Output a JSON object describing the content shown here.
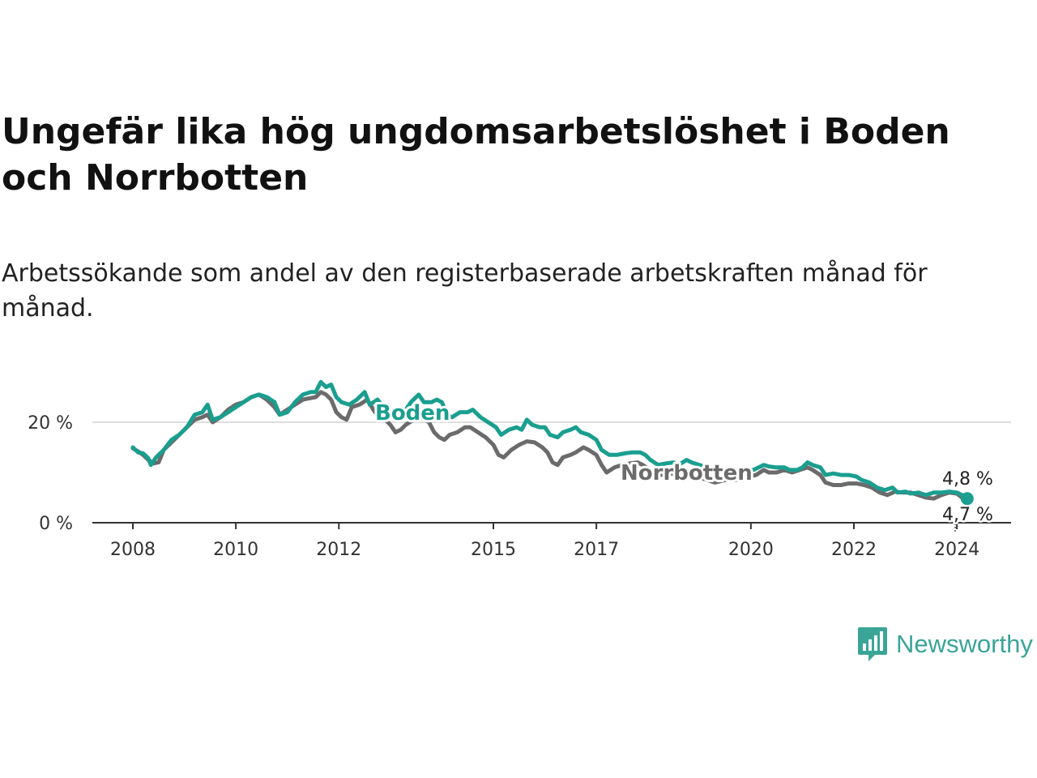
{
  "title": "Ungefär lika hög ungdomsarbetslöshet i Boden och Norrbotten",
  "subtitle": "Arbetssökande som andel av den registerbaserade arbetskraften månad för månad.",
  "logo": {
    "text": "Newsworthy",
    "icon": "newsworthy-chart-icon"
  },
  "colors": {
    "boden": "#1a9e8f",
    "norrbotten": "#6b6b6b",
    "grid": "#dddddd",
    "axis": "#333333"
  },
  "chart_data": {
    "type": "line",
    "title": "Ungefär lika hög ungdomsarbetslöshet i Boden och Norrbotten",
    "xlabel": "",
    "ylabel": "",
    "xlim": [
      2008.0,
      2024.25
    ],
    "ylim": [
      0,
      30
    ],
    "x_ticks": [
      {
        "value": 2008,
        "label": "2008"
      },
      {
        "value": 2010,
        "label": "2010"
      },
      {
        "value": 2012,
        "label": "2012"
      },
      {
        "value": 2015,
        "label": "2015"
      },
      {
        "value": 2017,
        "label": "2017"
      },
      {
        "value": 2020,
        "label": "2020"
      },
      {
        "value": 2022,
        "label": "2022"
      },
      {
        "value": 2024,
        "label": "2024"
      }
    ],
    "y_ticks": [
      {
        "value": 0,
        "label": "0 %"
      },
      {
        "value": 20,
        "label": "20 %"
      }
    ],
    "grid": true,
    "series": [
      {
        "name": "Boden",
        "label": "Boden",
        "end_label": "4,8 %",
        "points": [
          [
            2008.0,
            15.0
          ],
          [
            2008.1,
            14.0
          ],
          [
            2008.2,
            13.8
          ],
          [
            2008.3,
            12.8
          ],
          [
            2008.35,
            11.5
          ],
          [
            2008.45,
            13.0
          ],
          [
            2008.6,
            14.5
          ],
          [
            2008.75,
            16.5
          ],
          [
            2008.9,
            17.5
          ],
          [
            2009.05,
            19.0
          ],
          [
            2009.2,
            21.5
          ],
          [
            2009.35,
            22.0
          ],
          [
            2009.45,
            23.5
          ],
          [
            2009.55,
            20.5
          ],
          [
            2009.7,
            21.0
          ],
          [
            2009.85,
            22.0
          ],
          [
            2010.0,
            23.0
          ],
          [
            2010.15,
            24.0
          ],
          [
            2010.3,
            25.0
          ],
          [
            2010.45,
            25.5
          ],
          [
            2010.6,
            25.0
          ],
          [
            2010.75,
            24.0
          ],
          [
            2010.85,
            21.5
          ],
          [
            2011.0,
            22.0
          ],
          [
            2011.15,
            24.0
          ],
          [
            2011.3,
            25.5
          ],
          [
            2011.45,
            26.0
          ],
          [
            2011.55,
            26.0
          ],
          [
            2011.65,
            28.0
          ],
          [
            2011.75,
            27.0
          ],
          [
            2011.85,
            27.5
          ],
          [
            2011.95,
            25.0
          ],
          [
            2012.05,
            24.0
          ],
          [
            2012.2,
            23.5
          ],
          [
            2012.35,
            24.5
          ],
          [
            2012.5,
            26.0
          ],
          [
            2012.6,
            23.5
          ],
          [
            2012.75,
            24.5
          ],
          [
            2012.9,
            22.5
          ],
          [
            2013.05,
            22.0
          ],
          [
            2013.15,
            22.0
          ],
          [
            2013.3,
            22.5
          ],
          [
            2013.4,
            24.0
          ],
          [
            2013.55,
            25.5
          ],
          [
            2013.65,
            24.0
          ],
          [
            2013.8,
            24.0
          ],
          [
            2013.9,
            24.5
          ],
          [
            2014.0,
            24.0
          ],
          [
            2014.1,
            21.5
          ],
          [
            2014.2,
            21.0
          ],
          [
            2014.35,
            22.0
          ],
          [
            2014.5,
            22.0
          ],
          [
            2014.6,
            22.5
          ],
          [
            2014.75,
            21.0
          ],
          [
            2014.9,
            20.0
          ],
          [
            2015.05,
            19.0
          ],
          [
            2015.15,
            17.5
          ],
          [
            2015.3,
            18.5
          ],
          [
            2015.45,
            19.0
          ],
          [
            2015.55,
            18.5
          ],
          [
            2015.65,
            20.5
          ],
          [
            2015.75,
            19.5
          ],
          [
            2015.9,
            19.0
          ],
          [
            2016.0,
            19.0
          ],
          [
            2016.1,
            17.5
          ],
          [
            2016.25,
            17.0
          ],
          [
            2016.35,
            18.0
          ],
          [
            2016.5,
            18.5
          ],
          [
            2016.6,
            19.0
          ],
          [
            2016.7,
            18.0
          ],
          [
            2016.85,
            17.5
          ],
          [
            2017.0,
            16.5
          ],
          [
            2017.1,
            14.5
          ],
          [
            2017.25,
            13.5
          ],
          [
            2017.4,
            13.5
          ],
          [
            2017.55,
            13.8
          ],
          [
            2017.7,
            14.0
          ],
          [
            2017.85,
            14.0
          ],
          [
            2017.95,
            13.5
          ],
          [
            2018.05,
            12.5
          ],
          [
            2018.2,
            11.5
          ],
          [
            2018.35,
            11.8
          ],
          [
            2018.5,
            12.0
          ],
          [
            2018.6,
            11.5
          ],
          [
            2018.75,
            12.5
          ],
          [
            2018.85,
            12.0
          ],
          [
            2019.0,
            11.5
          ],
          [
            2019.15,
            11.0
          ],
          [
            2019.3,
            10.5
          ],
          [
            2019.5,
            10.5
          ],
          [
            2019.7,
            10.5
          ],
          [
            2019.9,
            10.5
          ],
          [
            2020.05,
            10.5
          ],
          [
            2020.15,
            11.0
          ],
          [
            2020.25,
            11.5
          ],
          [
            2020.35,
            11.2
          ],
          [
            2020.5,
            11.0
          ],
          [
            2020.65,
            11.0
          ],
          [
            2020.75,
            10.5
          ],
          [
            2020.9,
            10.5
          ],
          [
            2021.0,
            11.0
          ],
          [
            2021.1,
            12.0
          ],
          [
            2021.2,
            11.5
          ],
          [
            2021.35,
            11.0
          ],
          [
            2021.45,
            9.5
          ],
          [
            2021.6,
            9.8
          ],
          [
            2021.75,
            9.5
          ],
          [
            2021.9,
            9.5
          ],
          [
            2022.05,
            9.2
          ],
          [
            2022.15,
            8.5
          ],
          [
            2022.3,
            8.0
          ],
          [
            2022.45,
            7.0
          ],
          [
            2022.6,
            6.5
          ],
          [
            2022.75,
            7.0
          ],
          [
            2022.85,
            6.0
          ],
          [
            2023.0,
            6.2
          ],
          [
            2023.1,
            5.8
          ],
          [
            2023.25,
            6.0
          ],
          [
            2023.4,
            5.5
          ],
          [
            2023.55,
            6.0
          ],
          [
            2023.7,
            6.0
          ],
          [
            2023.85,
            6.2
          ],
          [
            2024.0,
            6.0
          ],
          [
            2024.1,
            5.5
          ],
          [
            2024.2,
            4.8
          ]
        ]
      },
      {
        "name": "Norrbotten",
        "label": "Norrbotten",
        "end_label": "4,7 %",
        "points": [
          [
            2008.0,
            14.8
          ],
          [
            2008.1,
            14.2
          ],
          [
            2008.2,
            13.5
          ],
          [
            2008.3,
            12.5
          ],
          [
            2008.4,
            11.8
          ],
          [
            2008.5,
            12.0
          ],
          [
            2008.6,
            14.5
          ],
          [
            2008.75,
            16.0
          ],
          [
            2008.9,
            17.5
          ],
          [
            2009.05,
            19.0
          ],
          [
            2009.2,
            20.5
          ],
          [
            2009.35,
            21.0
          ],
          [
            2009.45,
            21.5
          ],
          [
            2009.55,
            20.0
          ],
          [
            2009.7,
            21.0
          ],
          [
            2009.85,
            22.5
          ],
          [
            2010.0,
            23.5
          ],
          [
            2010.15,
            24.0
          ],
          [
            2010.3,
            25.0
          ],
          [
            2010.45,
            25.5
          ],
          [
            2010.6,
            24.5
          ],
          [
            2010.75,
            23.0
          ],
          [
            2010.85,
            21.5
          ],
          [
            2011.0,
            22.5
          ],
          [
            2011.15,
            23.5
          ],
          [
            2011.3,
            24.5
          ],
          [
            2011.45,
            24.8
          ],
          [
            2011.55,
            25.0
          ],
          [
            2011.65,
            26.0
          ],
          [
            2011.75,
            25.5
          ],
          [
            2011.85,
            24.5
          ],
          [
            2011.95,
            22.0
          ],
          [
            2012.05,
            21.0
          ],
          [
            2012.15,
            20.5
          ],
          [
            2012.25,
            23.0
          ],
          [
            2012.4,
            23.5
          ],
          [
            2012.55,
            24.5
          ],
          [
            2012.7,
            22.0
          ],
          [
            2012.85,
            21.0
          ],
          [
            2013.0,
            19.5
          ],
          [
            2013.1,
            18.0
          ],
          [
            2013.2,
            18.5
          ],
          [
            2013.3,
            19.5
          ],
          [
            2013.45,
            20.5
          ],
          [
            2013.6,
            21.0
          ],
          [
            2013.75,
            20.0
          ],
          [
            2013.85,
            18.0
          ],
          [
            2013.95,
            17.0
          ],
          [
            2014.05,
            16.5
          ],
          [
            2014.15,
            17.5
          ],
          [
            2014.3,
            18.0
          ],
          [
            2014.45,
            19.0
          ],
          [
            2014.55,
            19.0
          ],
          [
            2014.7,
            18.0
          ],
          [
            2014.85,
            17.0
          ],
          [
            2015.0,
            15.5
          ],
          [
            2015.1,
            13.5
          ],
          [
            2015.2,
            13.0
          ],
          [
            2015.35,
            14.5
          ],
          [
            2015.5,
            15.5
          ],
          [
            2015.65,
            16.2
          ],
          [
            2015.8,
            16.0
          ],
          [
            2015.95,
            15.0
          ],
          [
            2016.05,
            14.0
          ],
          [
            2016.15,
            12.0
          ],
          [
            2016.25,
            11.5
          ],
          [
            2016.35,
            13.0
          ],
          [
            2016.5,
            13.5
          ],
          [
            2016.6,
            14.0
          ],
          [
            2016.75,
            15.0
          ],
          [
            2016.85,
            14.5
          ],
          [
            2017.0,
            13.5
          ],
          [
            2017.1,
            11.5
          ],
          [
            2017.2,
            10.0
          ],
          [
            2017.35,
            11.0
          ],
          [
            2017.5,
            11.5
          ],
          [
            2017.65,
            11.8
          ],
          [
            2017.8,
            12.0
          ],
          [
            2017.9,
            11.5
          ],
          [
            2018.0,
            10.8
          ],
          [
            2018.1,
            9.5
          ],
          [
            2018.25,
            9.5
          ],
          [
            2018.4,
            10.0
          ],
          [
            2018.55,
            9.5
          ],
          [
            2018.7,
            9.0
          ],
          [
            2018.85,
            9.5
          ],
          [
            2019.0,
            9.0
          ],
          [
            2019.15,
            8.5
          ],
          [
            2019.3,
            8.0
          ],
          [
            2019.5,
            8.5
          ],
          [
            2019.7,
            8.5
          ],
          [
            2019.9,
            9.0
          ],
          [
            2020.1,
            9.5
          ],
          [
            2020.25,
            10.5
          ],
          [
            2020.35,
            10.0
          ],
          [
            2020.5,
            10.0
          ],
          [
            2020.65,
            10.5
          ],
          [
            2020.8,
            10.0
          ],
          [
            2020.95,
            10.5
          ],
          [
            2021.1,
            11.0
          ],
          [
            2021.2,
            10.5
          ],
          [
            2021.35,
            9.5
          ],
          [
            2021.45,
            8.0
          ],
          [
            2021.6,
            7.5
          ],
          [
            2021.75,
            7.5
          ],
          [
            2021.9,
            7.8
          ],
          [
            2022.05,
            7.8
          ],
          [
            2022.2,
            7.5
          ],
          [
            2022.35,
            7.0
          ],
          [
            2022.5,
            6.0
          ],
          [
            2022.65,
            5.5
          ],
          [
            2022.8,
            6.2
          ],
          [
            2022.95,
            6.0
          ],
          [
            2023.1,
            6.0
          ],
          [
            2023.25,
            5.5
          ],
          [
            2023.4,
            5.0
          ],
          [
            2023.55,
            4.8
          ],
          [
            2023.7,
            5.5
          ],
          [
            2023.85,
            6.0
          ],
          [
            2024.0,
            5.8
          ],
          [
            2024.1,
            5.0
          ],
          [
            2024.2,
            4.7
          ]
        ]
      }
    ]
  }
}
